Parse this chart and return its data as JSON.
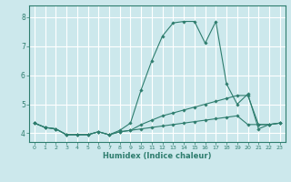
{
  "xlabel": "Humidex (Indice chaleur)",
  "bg_color": "#cce8ec",
  "line_color": "#2e7d6e",
  "grid_color": "#ffffff",
  "xlim": [
    -0.5,
    23.5
  ],
  "ylim": [
    3.7,
    8.4
  ],
  "yticks": [
    4,
    5,
    6,
    7,
    8
  ],
  "xticks": [
    0,
    1,
    2,
    3,
    4,
    5,
    6,
    7,
    8,
    9,
    10,
    11,
    12,
    13,
    14,
    15,
    16,
    17,
    18,
    19,
    20,
    21,
    22,
    23
  ],
  "series": [
    [
      4.35,
      4.2,
      4.15,
      3.95,
      3.95,
      3.95,
      4.05,
      3.95,
      4.05,
      4.1,
      4.15,
      4.2,
      4.25,
      4.3,
      4.35,
      4.4,
      4.45,
      4.5,
      4.55,
      4.6,
      4.3,
      4.3,
      4.3,
      4.35
    ],
    [
      4.35,
      4.2,
      4.15,
      3.95,
      3.95,
      3.95,
      4.05,
      3.95,
      4.1,
      4.35,
      5.5,
      6.5,
      7.35,
      7.8,
      7.85,
      7.85,
      7.1,
      7.85,
      5.7,
      5.0,
      5.35,
      4.15,
      4.3,
      4.35
    ],
    [
      4.35,
      4.2,
      4.15,
      3.95,
      3.95,
      3.95,
      4.05,
      3.95,
      4.05,
      4.1,
      4.3,
      4.45,
      4.6,
      4.7,
      4.8,
      4.9,
      5.0,
      5.1,
      5.2,
      5.3,
      5.3,
      4.3,
      4.3,
      4.35
    ]
  ]
}
